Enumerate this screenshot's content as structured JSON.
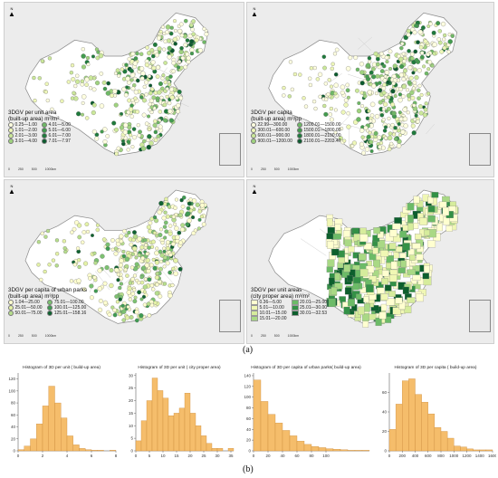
{
  "north_label": "N",
  "scale": {
    "ticks": [
      "0",
      "250",
      "500"
    ],
    "unit": "1000km"
  },
  "maps": [
    {
      "id": "unit-area",
      "legend_title": "3DGV per unit area\n(built-up area) m³/m²",
      "classes": [
        "0.25—1.00",
        "1.01—2.00",
        "2.01—3.00",
        "3.01—4.00",
        "4.01—5.00",
        "5.01—6.00",
        "6.01—7.00",
        "7.01—7.97"
      ],
      "colors": [
        "#ffffe0",
        "#eef7b8",
        "#cbe89a",
        "#9fd27f",
        "#6fb866",
        "#429b4e",
        "#1f7a3c",
        "#0c5a2e"
      ]
    },
    {
      "id": "per-capita",
      "legend_title": "3DGV per capita\n(built-up area) m³/pp",
      "classes": [
        "22.99—300.00",
        "300.01—600.00",
        "600.01—900.00",
        "900.01—1200.00",
        "1200.01—1500.00",
        "1500.01—1800.00",
        "1800.01—2100.00",
        "2100.01—2203.47"
      ],
      "colors": [
        "#ffffe0",
        "#eef7b8",
        "#cbe89a",
        "#9fd27f",
        "#6fb866",
        "#429b4e",
        "#1f7a3c",
        "#0c5a2e"
      ]
    },
    {
      "id": "urban-parks",
      "legend_title": "3DGV per capita of urban parks\n(built-up area) m³/pp",
      "classes": [
        "1.04—25.00",
        "25.01—50.00",
        "50.01—75.00",
        "75.01—100.00",
        "100.01—125.00",
        "125.01—158.16"
      ],
      "colors": [
        "#ffffd0",
        "#e4f2a6",
        "#b6dd8c",
        "#7cc171",
        "#3f9b52",
        "#0f6230"
      ]
    },
    {
      "id": "city-proper",
      "legend_title": "3DGV per unit areas\n(city proper area) m³/m²",
      "classes": [
        "0.36—5.00",
        "5.01—10.00",
        "10.01—15.00",
        "15.01—20.00",
        "20.01—25.00",
        "25.01—30.00",
        "30.01—32.53"
      ],
      "colors": [
        "#ffffd0",
        "#f0f7b4",
        "#d6ec9c",
        "#a9d985",
        "#6cbb67",
        "#339146",
        "#0d5f2d"
      ]
    }
  ],
  "captions": {
    "a": "(a)",
    "b": "(b)"
  },
  "chart_data": [
    {
      "type": "bar",
      "title": "Histogram of 3D per unit ( build-up area)",
      "bin_edges": [
        0,
        0.5,
        1,
        1.5,
        2,
        2.5,
        3,
        3.5,
        4,
        4.5,
        5,
        5.5,
        6,
        6.5,
        7,
        7.5,
        8
      ],
      "values": [
        2,
        8,
        20,
        45,
        75,
        108,
        80,
        55,
        25,
        10,
        4,
        2,
        1,
        1,
        0,
        1
      ],
      "xticks": [
        "0",
        "2",
        "4",
        "6",
        "8"
      ],
      "yticks": [
        "0",
        "20",
        "40",
        "60",
        "80",
        "100",
        "120"
      ],
      "ylim": [
        0,
        130
      ]
    },
    {
      "type": "bar",
      "title": "Histogram of 3D per unit ( city proper area)",
      "bin_edges": [
        0,
        2,
        4,
        6,
        8,
        10,
        12,
        14,
        16,
        18,
        20,
        22,
        24,
        26,
        28,
        30,
        32,
        34,
        36
      ],
      "values": [
        4,
        12,
        20,
        29,
        24,
        21,
        14,
        15,
        17,
        23,
        15,
        10,
        6,
        3,
        1,
        1,
        0,
        1
      ],
      "xticks": [
        "0",
        "5",
        "10",
        "15",
        "20",
        "25",
        "30",
        "35"
      ],
      "yticks": [
        "0",
        "5",
        "10",
        "15",
        "20",
        "25",
        "30"
      ],
      "ylim": [
        0,
        31
      ]
    },
    {
      "type": "bar",
      "title": "Histogram of 3D per capita of urban parks( build-up area)",
      "bin_edges": [
        0,
        10,
        20,
        30,
        40,
        50,
        60,
        70,
        80,
        90,
        100,
        110,
        120,
        130,
        140,
        150,
        160
      ],
      "values": [
        132,
        92,
        68,
        52,
        38,
        28,
        18,
        12,
        8,
        6,
        4,
        3,
        2,
        1,
        1,
        1
      ],
      "xticks": [
        "0",
        "20",
        "40",
        "60",
        "80",
        "100"
      ],
      "yticks": [
        "0",
        "20",
        "40",
        "60",
        "80",
        "100",
        "120",
        "140"
      ],
      "ylim": [
        0,
        145
      ]
    },
    {
      "type": "bar",
      "title": "Histogram of 3D per capita ( build-up area)",
      "bin_edges": [
        0,
        100,
        200,
        300,
        400,
        500,
        600,
        700,
        800,
        900,
        1000,
        1100,
        1200,
        1300,
        1400,
        1500,
        1600
      ],
      "values": [
        22,
        48,
        72,
        74,
        58,
        50,
        38,
        24,
        20,
        13,
        5,
        4,
        2,
        1,
        1,
        1
      ],
      "xticks": [
        "0",
        "200",
        "400",
        "600",
        "800",
        "1000",
        "1200",
        "1400",
        "1600"
      ],
      "yticks": [
        "0",
        "20",
        "40",
        "60"
      ],
      "ylim": [
        0,
        80
      ]
    }
  ]
}
